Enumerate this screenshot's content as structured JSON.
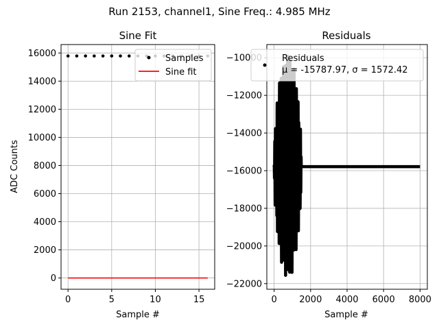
{
  "suptitle": "Run 2153, channel1, Sine Freq.: 4.985 MHz",
  "chart_data": [
    {
      "type": "scatter",
      "title": "Sine Fit",
      "xlabel": "Sample #",
      "ylabel": "ADC Counts",
      "xlim": [
        -0.8,
        16.8
      ],
      "ylim": [
        -800,
        16600
      ],
      "xticks": [
        0,
        5,
        10,
        15
      ],
      "yticks": [
        0,
        2000,
        4000,
        6000,
        8000,
        10000,
        12000,
        14000,
        16000
      ],
      "grid": true,
      "legend": "top-right",
      "series": [
        {
          "name": "Samples",
          "kind": "points",
          "color": "#000000",
          "x": [
            0,
            1,
            2,
            3,
            4,
            5,
            6,
            7,
            8,
            9,
            10,
            11,
            12,
            13,
            14,
            15,
            16
          ],
          "y": [
            15787,
            15787,
            15787,
            15787,
            15787,
            15787,
            15787,
            15787,
            15787,
            15787,
            15787,
            15787,
            15787,
            15787,
            15787,
            15787,
            15787
          ]
        },
        {
          "name": "Sine fit",
          "kind": "line",
          "color": "#ff0000",
          "x": [
            0,
            16
          ],
          "y": [
            0,
            0
          ]
        }
      ]
    },
    {
      "type": "scatter",
      "title": "Residuals",
      "xlabel": "Sample #",
      "ylabel": "",
      "xlim": [
        -400,
        8400
      ],
      "ylim": [
        -22300,
        -9300
      ],
      "xticks": [
        0,
        2000,
        4000,
        6000,
        8000
      ],
      "yticks": [
        -22000,
        -20000,
        -18000,
        -16000,
        -14000,
        -12000,
        -10000
      ],
      "grid": true,
      "legend": "top-right",
      "legend_label": "Residuals",
      "legend_stats": "μ = -15787.97, σ = 1572.42",
      "series": [
        {
          "name": "Residuals",
          "kind": "points",
          "color": "#000000",
          "baseline": -15787.97,
          "oscillation_end_x": 1500,
          "oscillation_amplitude": 6000,
          "x_end": 8000
        }
      ]
    }
  ]
}
